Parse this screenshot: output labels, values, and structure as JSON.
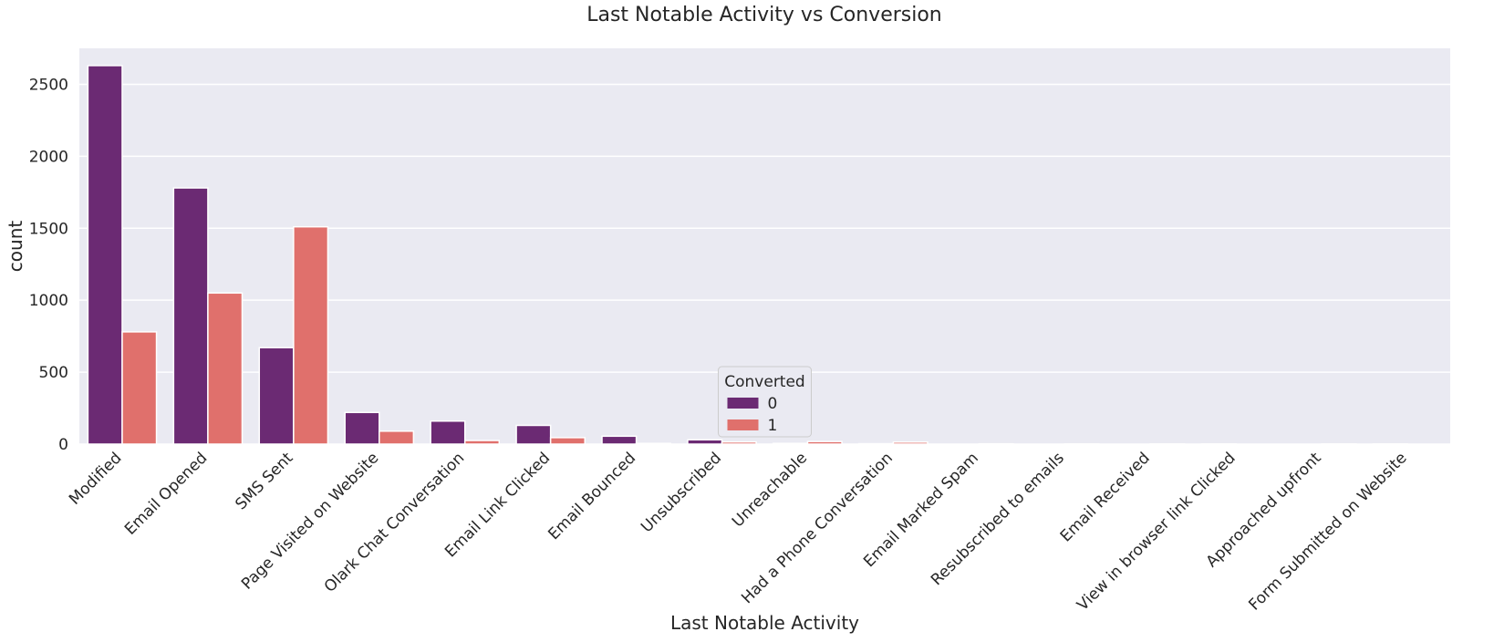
{
  "chart_data": {
    "type": "bar",
    "title": "Last Notable Activity vs Conversion",
    "xlabel": "Last Notable Activity",
    "ylabel": "count",
    "ylim": [
      0,
      2750
    ],
    "yticks": [
      0,
      500,
      1000,
      1500,
      2000,
      2500
    ],
    "grid": true,
    "legend_placement": "lower-center",
    "categories": [
      "Modified",
      "Email Opened",
      "SMS Sent",
      "Page Visited on Website",
      "Olark Chat Conversation",
      "Email Link Clicked",
      "Email Bounced",
      "Unsubscribed",
      "Unreachable",
      "Had a Phone Conversation",
      "Email Marked Spam",
      "Resubscribed to emails",
      "Email Received",
      "View in browser link Clicked",
      "Approached upfront",
      "Form Submitted on Website"
    ],
    "legend_title": "Converted",
    "series": [
      {
        "name": "0",
        "color": "#6b2a73",
        "values": [
          2630,
          1780,
          670,
          220,
          160,
          130,
          55,
          30,
          5,
          3,
          0,
          0,
          0,
          1,
          0,
          1
        ]
      },
      {
        "name": "1",
        "color": "#e0706c",
        "values": [
          780,
          1050,
          1510,
          90,
          25,
          45,
          5,
          15,
          18,
          14,
          2,
          1,
          1,
          0,
          1,
          0
        ]
      }
    ]
  }
}
